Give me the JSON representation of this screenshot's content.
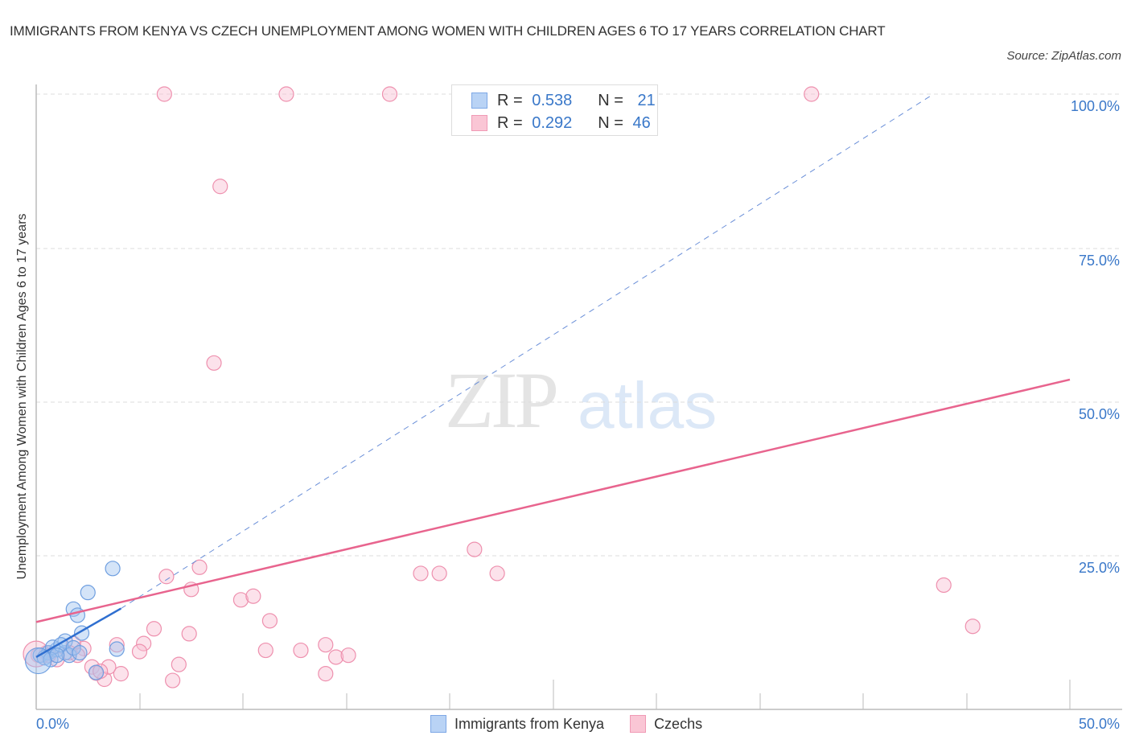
{
  "title": "IMMIGRANTS FROM KENYA VS CZECH UNEMPLOYMENT AMONG WOMEN WITH CHILDREN AGES 6 TO 17 YEARS CORRELATION CHART",
  "source": "Source: ZipAtlas.com",
  "watermark": {
    "zip": "ZIP",
    "atlas": "atlas"
  },
  "legend": {
    "rows": [
      {
        "r_label": "R = ",
        "r_value": "0.538",
        "n_label": "N = ",
        "n_value": "21",
        "color": "#a9c8f0"
      },
      {
        "r_label": "R = ",
        "r_value": "0.292",
        "n_label": "N = ",
        "n_value": "46",
        "color": "#f7b9cc"
      }
    ]
  },
  "bottom_legend": [
    "Immigrants from Kenya",
    "Czechs"
  ],
  "axes": {
    "ylabel": "Unemployment Among Women with Children Ages 6 to 17 years",
    "yticks": [
      "100.0%",
      "75.0%",
      "50.0%",
      "25.0%"
    ],
    "xticks": [
      "0.0%",
      "50.0%"
    ]
  },
  "chart_data": {
    "type": "scatter",
    "title": "IMMIGRANTS FROM KENYA VS CZECH UNEMPLOYMENT AMONG WOMEN WITH CHILDREN AGES 6 TO 17 YEARS CORRELATION CHART",
    "xlabel": "",
    "ylabel": "Unemployment Among Women with Children Ages 6 to 17 years",
    "xlim": [
      0,
      50
    ],
    "ylim": [
      0,
      100
    ],
    "grid": true,
    "legend_position": "bottom",
    "series": [
      {
        "name": "Immigrants from Kenya",
        "color": "#6fa0e0",
        "R": 0.538,
        "N": 21,
        "points": [
          [
            0.2,
            8.8
          ],
          [
            0.6,
            9.2
          ],
          [
            1.0,
            9.7
          ],
          [
            1.4,
            9.2
          ],
          [
            0.8,
            10.1
          ],
          [
            2.5,
            19.0
          ],
          [
            3.7,
            22.9
          ],
          [
            1.8,
            16.3
          ],
          [
            2.0,
            15.3
          ],
          [
            2.2,
            12.4
          ],
          [
            1.4,
            11.1
          ],
          [
            1.2,
            10.5
          ],
          [
            1.6,
            8.8
          ],
          [
            3.9,
            9.8
          ],
          [
            2.9,
            6.0
          ],
          [
            0.4,
            8.4
          ],
          [
            0.7,
            8.1
          ],
          [
            1.0,
            8.8
          ],
          [
            1.8,
            10.0
          ],
          [
            2.1,
            9.2
          ],
          [
            0.1,
            7.9
          ]
        ],
        "trend": {
          "x0": 0,
          "y0": 8.5,
          "x1": 4.1,
          "y1": 16.4,
          "extended_to": [
            43.4,
            100
          ]
        }
      },
      {
        "name": "Czechs",
        "color": "#f08cab",
        "R": 0.292,
        "N": 46,
        "points": [
          [
            6.2,
            100
          ],
          [
            12.1,
            100
          ],
          [
            17.1,
            100
          ],
          [
            37.5,
            100
          ],
          [
            8.9,
            85.0
          ],
          [
            8.6,
            56.3
          ],
          [
            21.2,
            26.0
          ],
          [
            18.6,
            22.1
          ],
          [
            19.5,
            22.1
          ],
          [
            22.3,
            22.1
          ],
          [
            43.9,
            20.2
          ],
          [
            45.3,
            13.5
          ],
          [
            6.3,
            21.6
          ],
          [
            7.9,
            23.1
          ],
          [
            7.5,
            19.5
          ],
          [
            9.9,
            17.8
          ],
          [
            10.5,
            18.4
          ],
          [
            11.3,
            14.4
          ],
          [
            5.7,
            13.1
          ],
          [
            7.4,
            12.3
          ],
          [
            5.2,
            10.7
          ],
          [
            5.0,
            9.4
          ],
          [
            3.9,
            10.5
          ],
          [
            2.3,
            9.9
          ],
          [
            1.8,
            10.7
          ],
          [
            11.1,
            9.6
          ],
          [
            12.8,
            9.6
          ],
          [
            14.0,
            10.5
          ],
          [
            14.5,
            8.5
          ],
          [
            15.1,
            8.8
          ],
          [
            14.0,
            5.8
          ],
          [
            6.9,
            7.3
          ],
          [
            6.6,
            4.7
          ],
          [
            4.1,
            5.8
          ],
          [
            3.3,
            4.9
          ],
          [
            3.5,
            6.9
          ],
          [
            2.7,
            6.9
          ],
          [
            1.0,
            8.1
          ],
          [
            0.6,
            8.8
          ],
          [
            0.1,
            8.8
          ],
          [
            0.5,
            9.2
          ],
          [
            1.6,
            9.2
          ],
          [
            2.0,
            8.8
          ],
          [
            2.9,
            5.9
          ],
          [
            3.1,
            6.2
          ],
          [
            0.0,
            9.0
          ]
        ],
        "trend": {
          "x0": 0,
          "y0": 14.2,
          "x1": 50,
          "y1": 53.6
        }
      }
    ]
  }
}
